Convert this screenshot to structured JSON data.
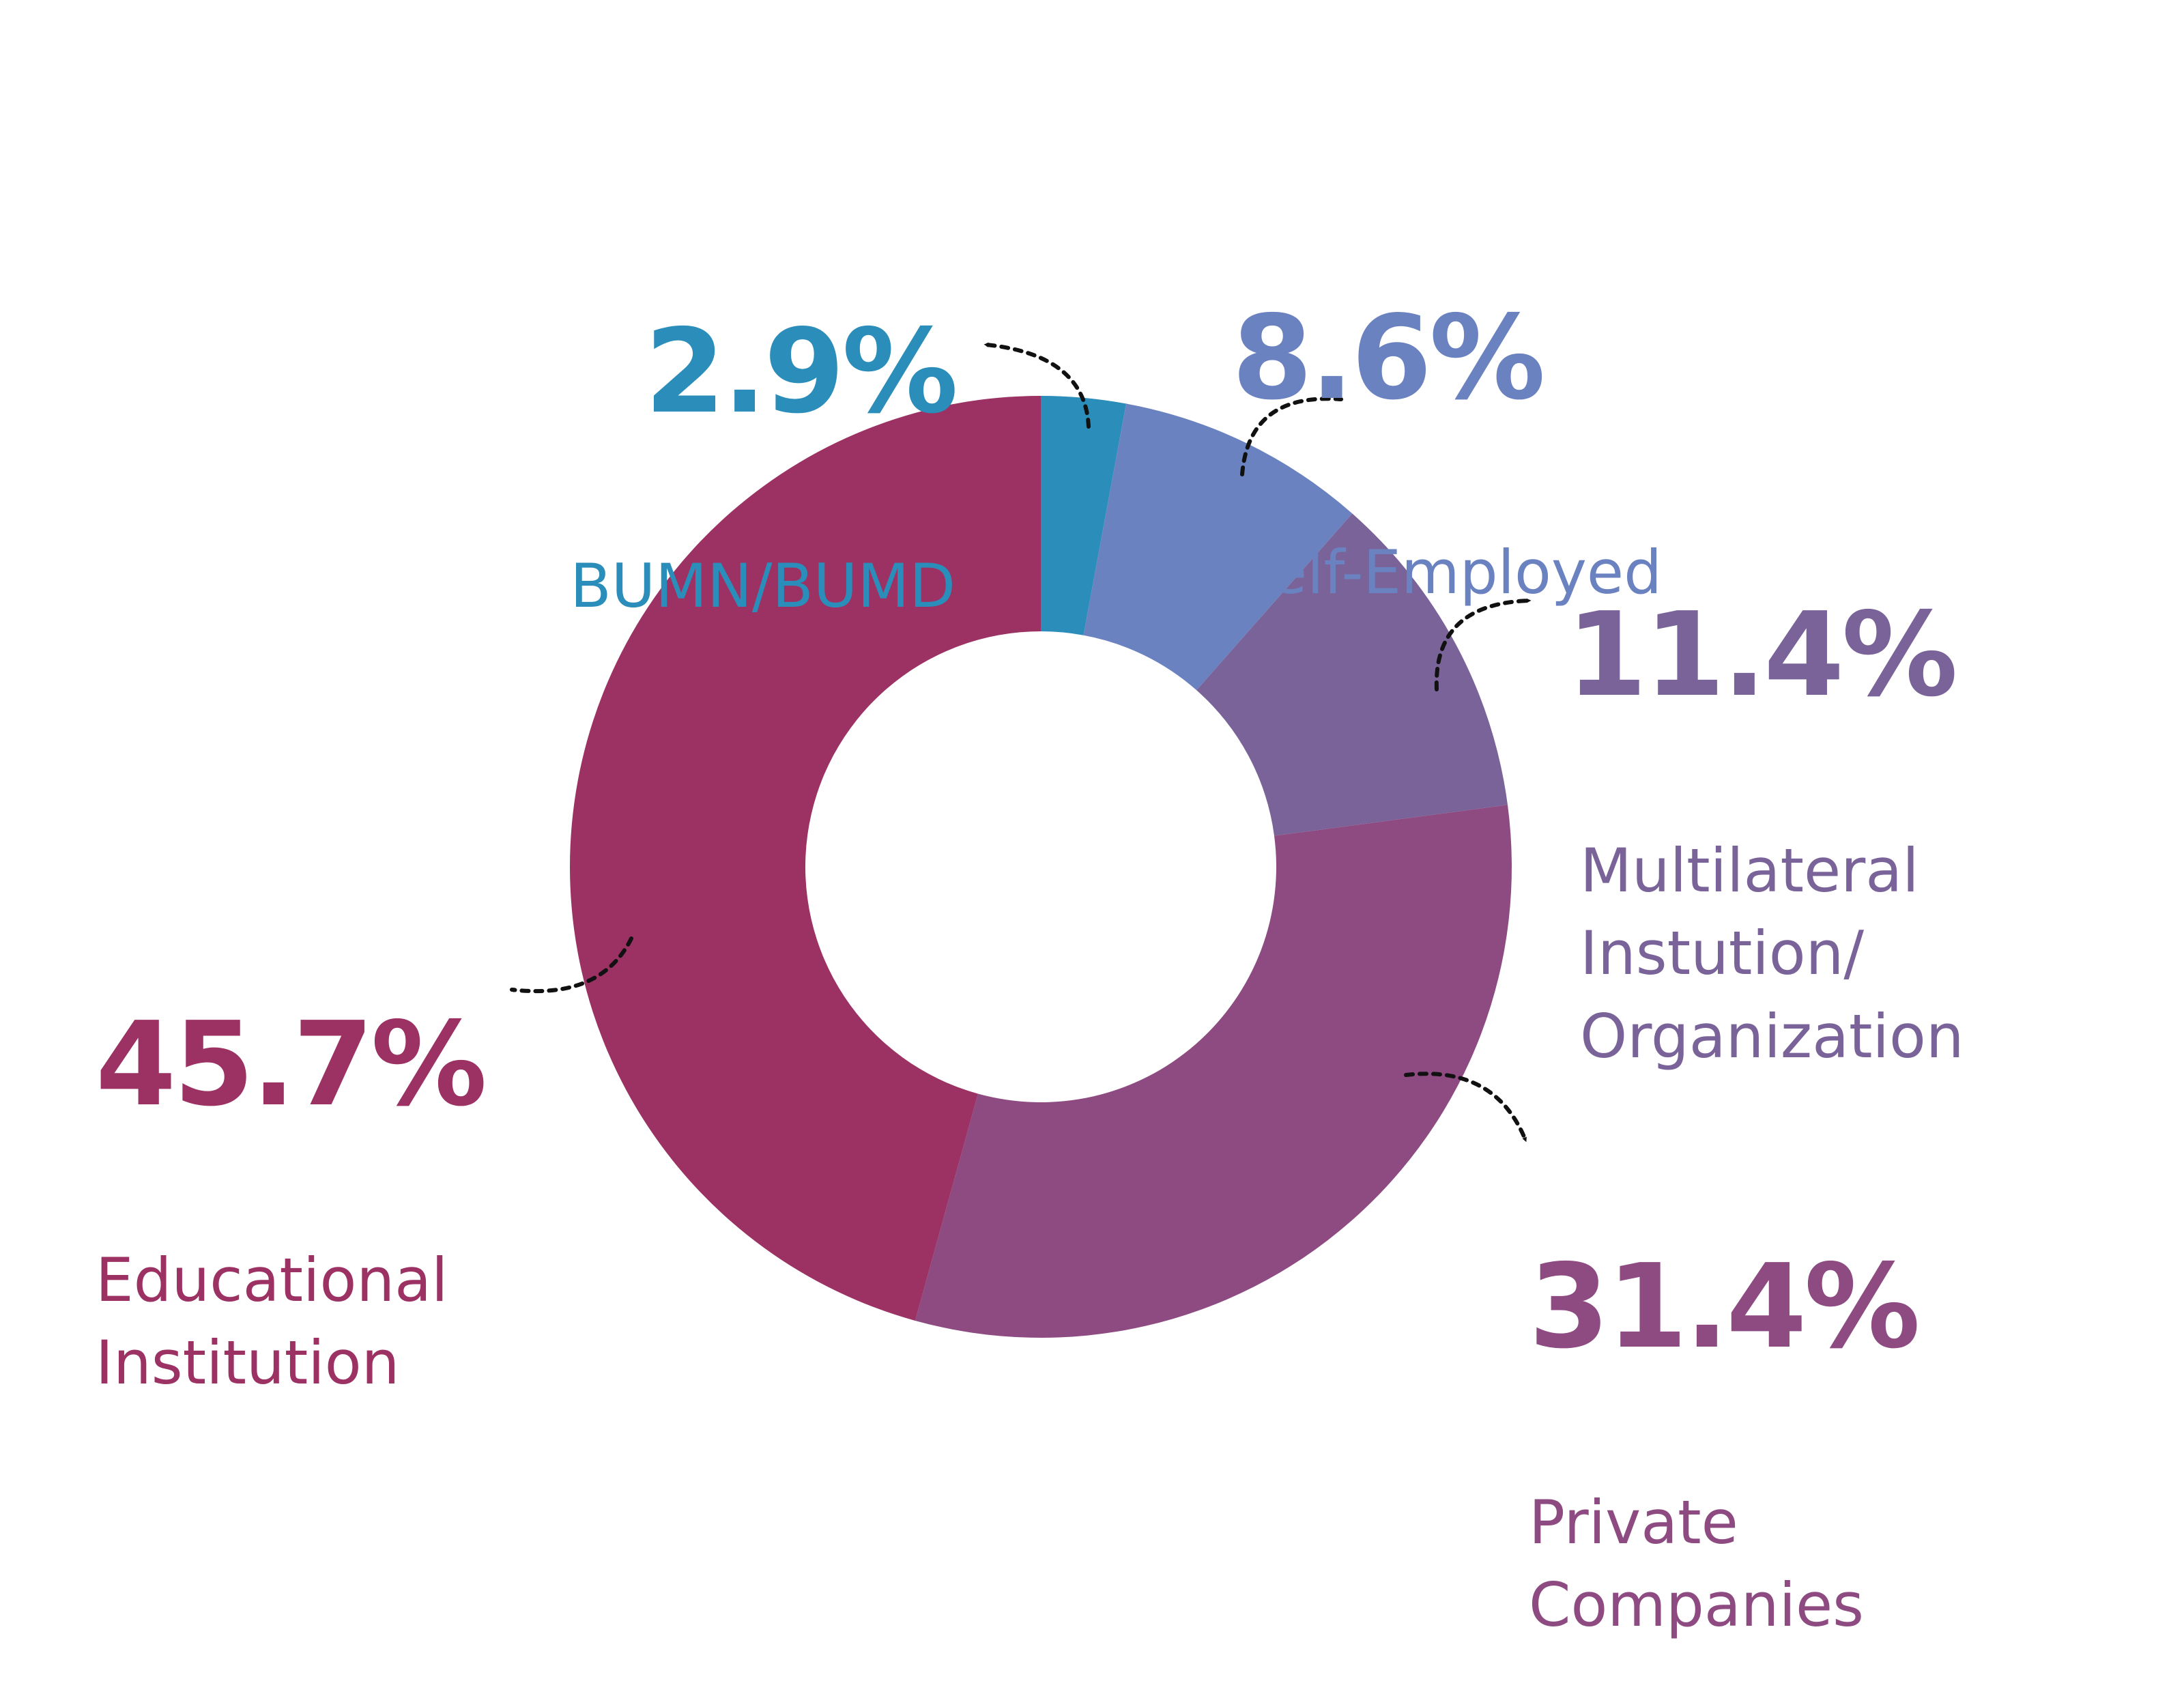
{
  "chart_data": {
    "type": "pie",
    "style": "donut",
    "direction": "clockwise from top",
    "slices": [
      {
        "label": "BUMN/BUMD",
        "percent_label": "2.9%",
        "value": 2.9,
        "color": "#2b8db9"
      },
      {
        "label": "Self-Employed",
        "percent_label": "8.6%",
        "value": 8.6,
        "color": "#6b82c1"
      },
      {
        "label": "Multilateral\nInstution/\nOrganization",
        "percent_label": "11.4%",
        "value": 11.4,
        "color": "#7a6399"
      },
      {
        "label": "Private\nCompanies",
        "percent_label": "31.4%",
        "value": 31.4,
        "color": "#8d4b81"
      },
      {
        "label": "Educational\nInstitution",
        "percent_label": "45.7%",
        "value": 45.7,
        "color": "#9c3163"
      }
    ]
  }
}
